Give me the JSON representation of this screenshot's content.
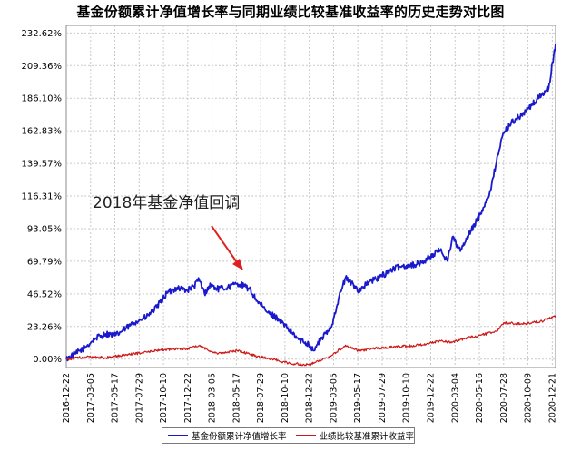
{
  "chart_data": {
    "type": "line",
    "title": "基金份额累计净值增长率与同期业绩比较基准收益率的历史走势对比图",
    "y_ticks": [
      "232.62%",
      "209.36%",
      "186.10%",
      "162.83%",
      "139.57%",
      "116.31%",
      "93.05%",
      "69.79%",
      "46.52%",
      "23.26%",
      "0.00%"
    ],
    "ylim": [
      -6,
      238
    ],
    "x_ticks": [
      "2016-12-22",
      "2017-03-05",
      "2017-05-17",
      "2017-07-29",
      "2017-10-10",
      "2017-12-22",
      "2018-03-05",
      "2018-05-17",
      "2018-07-29",
      "2018-10-10",
      "2018-12-22",
      "2019-03-05",
      "2019-05-17",
      "2019-07-29",
      "2019-10-10",
      "2019-12-22",
      "2020-03-04",
      "2020-05-16",
      "2020-07-28",
      "2020-10-09",
      "2020-12-21"
    ],
    "grid": true,
    "legend_position": "bottom",
    "annotation": "2018年基金净值回调",
    "series": [
      {
        "name": "基金份额累计净值增长率",
        "color": "#1a1acc",
        "unit": "%",
        "x": [
          "2016-12-22",
          "2017-01-20",
          "2017-02-20",
          "2017-03-20",
          "2017-04-20",
          "2017-05-20",
          "2017-06-20",
          "2017-07-20",
          "2017-08-20",
          "2017-09-20",
          "2017-10-20",
          "2017-11-20",
          "2017-12-20",
          "2018-01-10",
          "2018-01-25",
          "2018-02-10",
          "2018-03-01",
          "2018-03-20",
          "2018-04-20",
          "2018-05-20",
          "2018-06-10",
          "2018-06-25",
          "2018-07-20",
          "2018-08-20",
          "2018-09-20",
          "2018-10-20",
          "2018-11-20",
          "2018-12-20",
          "2019-01-04",
          "2019-01-25",
          "2019-02-25",
          "2019-03-20",
          "2019-04-10",
          "2019-05-20",
          "2019-06-20",
          "2019-07-20",
          "2019-08-20",
          "2019-09-20",
          "2019-10-20",
          "2019-11-20",
          "2019-12-20",
          "2020-01-20",
          "2020-02-10",
          "2020-02-25",
          "2020-03-20",
          "2020-04-20",
          "2020-05-20",
          "2020-06-20",
          "2020-07-10",
          "2020-07-28",
          "2020-08-20",
          "2020-09-20",
          "2020-10-20",
          "2020-11-20",
          "2020-12-10",
          "2020-12-31"
        ],
        "y": [
          0.0,
          4.0,
          9.0,
          15.0,
          18.0,
          17.0,
          22.0,
          27.0,
          30.0,
          37.0,
          47.0,
          51.0,
          49.0,
          52.0,
          57.0,
          47.0,
          53.0,
          50.0,
          51.0,
          54.0,
          52.0,
          50.0,
          41.0,
          33.0,
          29.0,
          21.0,
          14.0,
          11.0,
          6.0,
          14.0,
          22.0,
          43.0,
          58.0,
          49.0,
          55.0,
          58.0,
          63.0,
          66.0,
          67.0,
          68.0,
          73.0,
          78.0,
          70.0,
          87.0,
          77.0,
          91.0,
          104.0,
          121.0,
          146.0,
          161.0,
          169.0,
          174.0,
          181.0,
          189.0,
          193.0,
          225.0
        ]
      },
      {
        "name": "业绩比较基准累计收益率",
        "color": "#cc1a1a",
        "unit": "%",
        "x": [
          "2016-12-22",
          "2017-02-20",
          "2017-04-20",
          "2017-06-20",
          "2017-08-20",
          "2017-10-20",
          "2017-12-20",
          "2018-01-25",
          "2018-03-20",
          "2018-05-20",
          "2018-07-20",
          "2018-09-20",
          "2018-10-20",
          "2018-12-20",
          "2019-01-04",
          "2019-02-25",
          "2019-04-10",
          "2019-05-20",
          "2019-07-20",
          "2019-09-20",
          "2019-11-20",
          "2020-01-20",
          "2020-02-25",
          "2020-03-20",
          "2020-05-20",
          "2020-07-10",
          "2020-07-28",
          "2020-09-20",
          "2020-11-20",
          "2020-12-31"
        ],
        "y": [
          0.0,
          1.5,
          1.0,
          3.0,
          5.0,
          7.0,
          7.5,
          9.5,
          4.0,
          6.0,
          2.0,
          -1.0,
          -3.0,
          -4.0,
          -3.0,
          2.0,
          10.0,
          6.0,
          8.0,
          9.0,
          10.0,
          13.0,
          12.0,
          14.0,
          17.0,
          20.0,
          26.0,
          25.0,
          27.0,
          31.0
        ]
      }
    ]
  }
}
